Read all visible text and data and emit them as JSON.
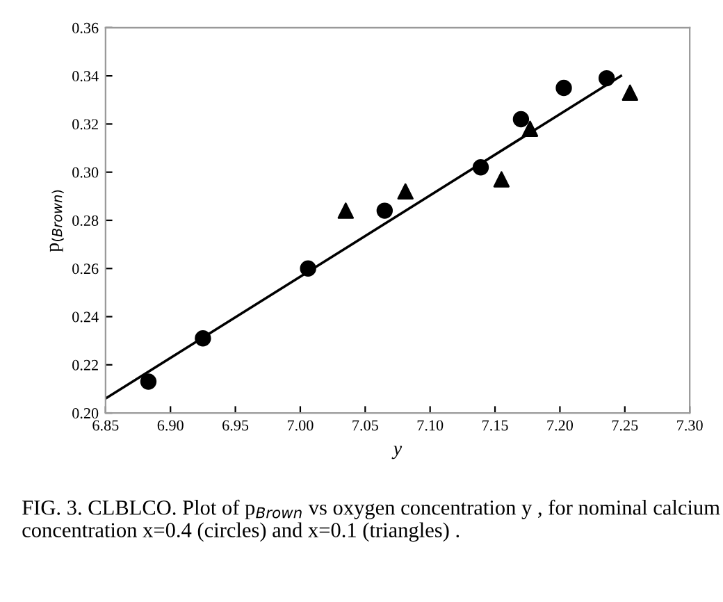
{
  "chart_data": {
    "type": "scatter",
    "xlabel": "y",
    "ylabel": "p$_{(Brown)}$",
    "xlim": [
      6.85,
      7.3
    ],
    "ylim": [
      0.2,
      0.36
    ],
    "xticks": [
      6.85,
      {
        "value": 6.9,
        "label": "6.90"
      },
      6.95,
      {
        "value": 7.0,
        "label": "7.00"
      },
      7.05,
      {
        "value": 7.1,
        "label": "7.10"
      },
      7.15,
      {
        "value": 7.2,
        "label": "7.20"
      },
      7.25,
      {
        "value": 7.3,
        "label": "7.30"
      }
    ],
    "yticks": [
      {
        "value": 0.2,
        "label": "0.20"
      },
      0.22,
      0.24,
      0.26,
      0.28,
      {
        "value": 0.3,
        "label": "0.30"
      },
      0.32,
      0.34,
      0.36
    ],
    "grid": false,
    "legend": false,
    "series": [
      {
        "marker": "circle",
        "color": "#000000",
        "x": [
          6.883,
          6.925,
          7.006,
          7.065,
          7.139,
          7.17,
          7.203,
          7.236
        ],
        "values": [
          0.213,
          0.231,
          0.26,
          0.284,
          0.302,
          0.322,
          0.335,
          0.339
        ]
      },
      {
        "marker": "triangle",
        "color": "#000000",
        "x": [
          7.035,
          7.081,
          7.155,
          7.177,
          7.254
        ],
        "values": [
          0.284,
          0.292,
          0.297,
          0.318,
          0.333
        ]
      },
      {
        "type": "line",
        "marker": "none",
        "line_style": "solid",
        "color": "#000000",
        "x": [
          6.85,
          7.247
        ],
        "values": [
          0.206,
          0.34
        ]
      }
    ],
    "annotations": [
      "FIG. 3. CLBLCO. Plot of p$_{Brown}$ vs oxygen concentration y , for nominal calcium concentration x=0.4 (circles) and x=0.1 (triangles) ."
    ]
  }
}
